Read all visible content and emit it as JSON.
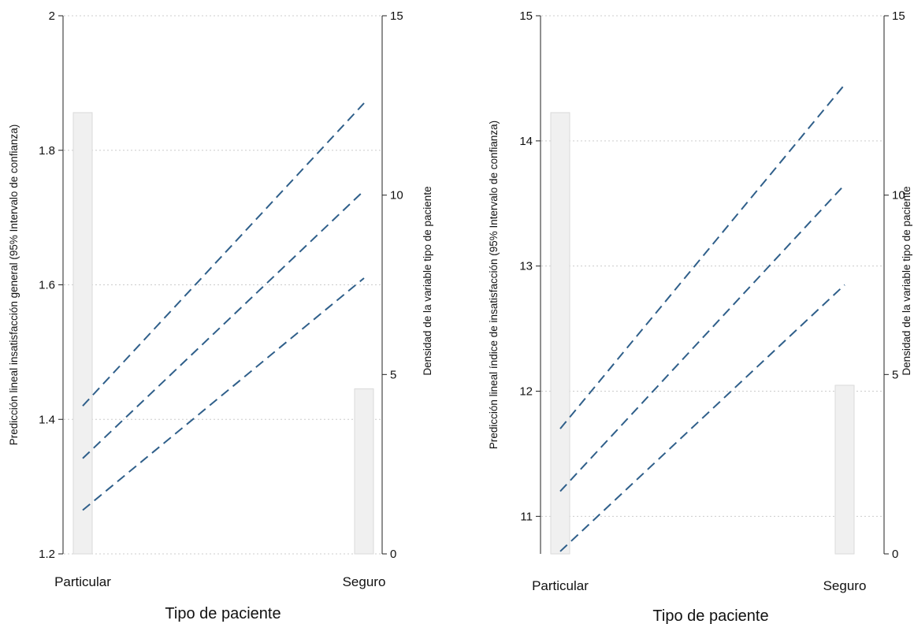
{
  "chart_data": [
    {
      "type": "line",
      "categories": [
        "Particular",
        "Seguro"
      ],
      "xlabel": "Tipo de paciente",
      "ylabel": "Predicción lineal insatisfacción general (95% Intervalo de confianza)",
      "y2label": "Densidad de la variable tipo de paciente",
      "ylim": [
        1.2,
        2.0
      ],
      "yticks": [
        1.2,
        1.4,
        1.6,
        1.8,
        2.0
      ],
      "ytick_labels": [
        "1.2",
        "1.4",
        "1.6",
        "1.8",
        "2"
      ],
      "y2lim": [
        0,
        15
      ],
      "y2ticks": [
        0,
        5,
        10,
        15
      ],
      "y2tick_labels": [
        "0",
        "5",
        "10",
        "15"
      ],
      "grid": true,
      "series": [
        {
          "values": [
            1.42,
            1.87
          ]
        },
        {
          "values": [
            1.342,
            1.74
          ]
        },
        {
          "values": [
            1.265,
            1.61
          ]
        }
      ],
      "density": [
        12.3,
        4.6
      ]
    },
    {
      "type": "line",
      "categories": [
        "Particular",
        "Seguro"
      ],
      "xlabel": "Tipo de paciente",
      "ylabel": "Predicción lineal  índice de insatisfacción (95% Intervalo de confianza)",
      "y2label": "Densidad de la variable tipo de paciente",
      "ylim": [
        10.7,
        15.0
      ],
      "yticks": [
        11,
        12,
        13,
        14,
        15
      ],
      "ytick_labels": [
        "11",
        "12",
        "13",
        "14",
        "15"
      ],
      "y2lim": [
        0,
        15
      ],
      "y2ticks": [
        0,
        5,
        10,
        15
      ],
      "y2tick_labels": [
        "0",
        "5",
        "10",
        "15"
      ],
      "grid": true,
      "series": [
        {
          "values": [
            11.7,
            14.45
          ]
        },
        {
          "values": [
            11.2,
            13.65
          ]
        },
        {
          "values": [
            10.72,
            12.85
          ]
        }
      ],
      "density": [
        12.3,
        4.7
      ]
    }
  ]
}
